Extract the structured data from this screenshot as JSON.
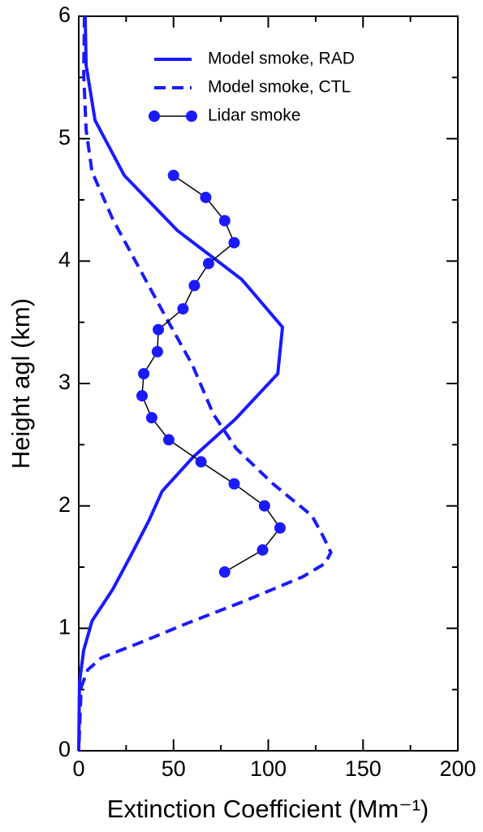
{
  "chart_data": {
    "type": "line",
    "xlabel": "Extinction Coefficient (Mm⁻¹)",
    "ylabel": "Height agl (km)",
    "xlim": [
      0,
      200
    ],
    "xticks": [
      0,
      50,
      100,
      150,
      200
    ],
    "ylim": [
      0,
      6
    ],
    "yticks": [
      0,
      1,
      2,
      3,
      4,
      5,
      6
    ],
    "grid": false,
    "legend": "upper right",
    "series": [
      {
        "name": "Model smoke, RAD",
        "color": "#1a1aff",
        "style": "solid",
        "markers": false,
        "x": [
          3.4,
          3.9,
          8.6,
          24,
          52,
          86,
          107.5,
          105,
          82.7,
          60.4,
          44,
          37,
          28,
          18,
          7,
          2.6,
          0.4,
          0
        ],
        "y": [
          6.0,
          5.6,
          5.15,
          4.7,
          4.25,
          3.85,
          3.46,
          3.08,
          2.71,
          2.4,
          2.12,
          1.88,
          1.61,
          1.32,
          1.06,
          0.82,
          0.56,
          0
        ]
      },
      {
        "name": "Model smoke, CTL",
        "color": "#1a1aff",
        "style": "dashed",
        "markers": false,
        "x": [
          3,
          2.6,
          3.9,
          7,
          18,
          32,
          46,
          60,
          71,
          83,
          102.5,
          123,
          129,
          133,
          130,
          118,
          87,
          57,
          33.5,
          12,
          4.7,
          1.3,
          0
        ],
        "y": [
          6.0,
          5.53,
          5.07,
          4.73,
          4.34,
          3.94,
          3.54,
          3.15,
          2.75,
          2.47,
          2.18,
          1.92,
          1.75,
          1.62,
          1.53,
          1.42,
          1.22,
          1.04,
          0.89,
          0.76,
          0.66,
          0.52,
          0
        ]
      },
      {
        "name": "Lidar smoke",
        "color": "#1a1aff",
        "line_color": "#000000",
        "style": "solid",
        "markers": true,
        "x": [
          50,
          67,
          77,
          82,
          68.5,
          61,
          55,
          42,
          41.5,
          34.3,
          33.4,
          38.5,
          47.5,
          64.5,
          82,
          98,
          106.2,
          97,
          77
        ],
        "y": [
          4.7,
          4.52,
          4.33,
          4.15,
          3.98,
          3.8,
          3.61,
          3.44,
          3.26,
          3.08,
          2.9,
          2.72,
          2.54,
          2.36,
          2.18,
          2.0,
          1.82,
          1.64,
          1.46
        ]
      }
    ]
  }
}
